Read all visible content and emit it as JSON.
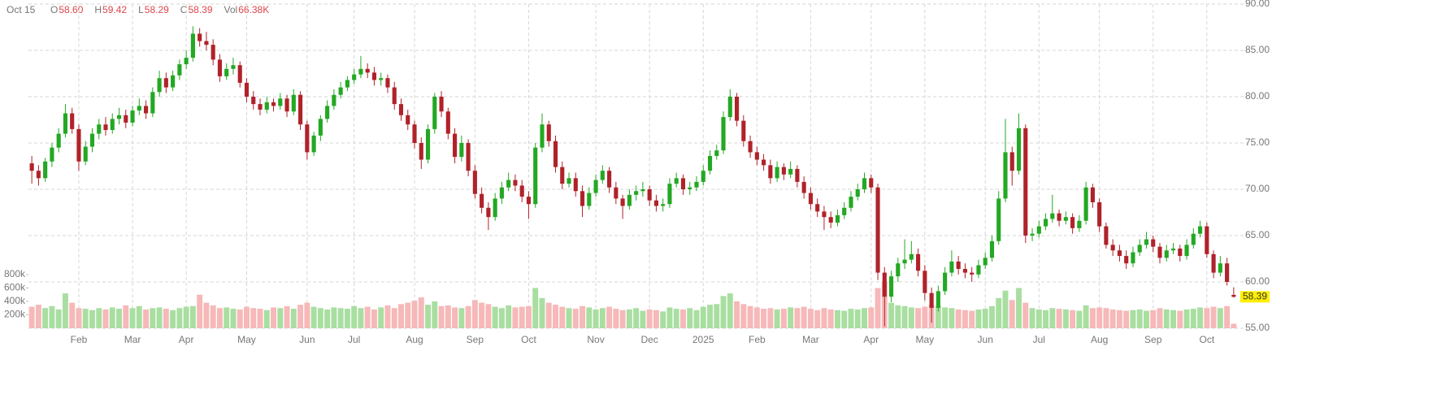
{
  "header": {
    "date": "Oct 15",
    "items": [
      {
        "label": "O",
        "value": "58.60"
      },
      {
        "label": "H",
        "value": "59.42"
      },
      {
        "label": "L",
        "value": "58.29"
      },
      {
        "label": "C",
        "value": "58.39"
      },
      {
        "label": "Vol",
        "value": "66.38K"
      }
    ]
  },
  "chart_data": {
    "type": "candlestick",
    "up_color": "#23a823",
    "down_color": "#b0222a",
    "volume_up_color": "#a9dea1",
    "volume_down_color": "#f6b8b8",
    "grid": true,
    "ylim": [
      55,
      90
    ],
    "yticks": [
      {
        "value": 55,
        "label": "55.00"
      },
      {
        "value": 60,
        "label": "60.00"
      },
      {
        "value": 65,
        "label": "65.00"
      },
      {
        "value": 70,
        "label": "70.00"
      },
      {
        "value": 75,
        "label": "75.00"
      },
      {
        "value": 80,
        "label": "80.00"
      },
      {
        "value": 85,
        "label": "85.00"
      },
      {
        "value": 90,
        "label": "90.00"
      }
    ],
    "volume_ylim": [
      0,
      800000
    ],
    "volume_ticks": [
      {
        "value": 200000,
        "label": "200k"
      },
      {
        "value": 400000,
        "label": "400k"
      },
      {
        "value": 600000,
        "label": "600k"
      },
      {
        "value": 800000,
        "label": "800k"
      }
    ],
    "categories": [
      null,
      null,
      null,
      null,
      null,
      null,
      null,
      "Feb",
      null,
      null,
      null,
      null,
      null,
      null,
      null,
      "Mar",
      null,
      null,
      null,
      null,
      null,
      null,
      null,
      "Apr",
      null,
      null,
      null,
      null,
      null,
      null,
      null,
      null,
      "May",
      null,
      null,
      null,
      null,
      null,
      null,
      null,
      null,
      "Jun",
      null,
      null,
      null,
      null,
      null,
      null,
      "Jul",
      null,
      null,
      null,
      null,
      null,
      null,
      null,
      null,
      "Aug",
      null,
      null,
      null,
      null,
      null,
      null,
      null,
      null,
      "Sep",
      null,
      null,
      null,
      null,
      null,
      null,
      null,
      "Oct",
      null,
      null,
      null,
      null,
      null,
      null,
      null,
      null,
      null,
      "Nov",
      null,
      null,
      null,
      null,
      null,
      null,
      null,
      "Dec",
      null,
      null,
      null,
      null,
      null,
      null,
      null,
      "2025",
      null,
      null,
      null,
      null,
      null,
      null,
      null,
      "Feb",
      null,
      null,
      null,
      null,
      null,
      null,
      null,
      "Mar",
      null,
      null,
      null,
      null,
      null,
      null,
      null,
      null,
      "Apr",
      null,
      null,
      null,
      null,
      null,
      null,
      null,
      "May",
      null,
      null,
      null,
      null,
      null,
      null,
      null,
      null,
      "Jun",
      null,
      null,
      null,
      null,
      null,
      null,
      null,
      "Jul",
      null,
      null,
      null,
      null,
      null,
      null,
      null,
      null,
      "Aug",
      null,
      null,
      null,
      null,
      null,
      null,
      null,
      "Sep",
      null,
      null,
      null,
      null,
      null,
      null,
      null,
      "Oct",
      null,
      null,
      null,
      null
    ],
    "candles": [
      [
        72.8,
        73.6,
        70.6,
        72.0
      ],
      [
        72.0,
        72.6,
        70.4,
        71.2
      ],
      [
        71.2,
        73.4,
        70.8,
        73.0
      ],
      [
        73.0,
        75.0,
        72.4,
        74.5
      ],
      [
        74.5,
        76.6,
        74.0,
        76.0
      ],
      [
        76.0,
        79.2,
        75.6,
        78.2
      ],
      [
        78.2,
        78.8,
        76.0,
        76.5
      ],
      [
        76.5,
        77.0,
        72.0,
        73.0
      ],
      [
        73.0,
        75.2,
        72.6,
        74.6
      ],
      [
        74.6,
        76.6,
        74.0,
        76.0
      ],
      [
        76.0,
        77.6,
        75.4,
        77.0
      ],
      [
        77.0,
        77.8,
        75.8,
        76.4
      ],
      [
        76.4,
        78.2,
        76.0,
        77.6
      ],
      [
        77.6,
        78.8,
        77.0,
        78.0
      ],
      [
        78.0,
        78.6,
        76.6,
        77.2
      ],
      [
        77.2,
        79.0,
        76.8,
        78.5
      ],
      [
        78.5,
        79.8,
        78.0,
        79.0
      ],
      [
        79.0,
        79.6,
        77.6,
        78.2
      ],
      [
        78.2,
        81.0,
        77.8,
        80.5
      ],
      [
        80.5,
        82.8,
        80.0,
        82.0
      ],
      [
        82.0,
        82.6,
        80.4,
        81.0
      ],
      [
        81.0,
        82.8,
        80.6,
        82.3
      ],
      [
        82.3,
        84.0,
        81.8,
        83.5
      ],
      [
        83.5,
        85.0,
        83.0,
        84.2
      ],
      [
        84.2,
        87.6,
        83.8,
        86.8
      ],
      [
        86.8,
        87.4,
        85.4,
        86.0
      ],
      [
        86.0,
        87.0,
        85.0,
        85.6
      ],
      [
        85.6,
        86.2,
        83.4,
        84.0
      ],
      [
        84.0,
        84.6,
        81.6,
        82.2
      ],
      [
        82.2,
        83.6,
        81.8,
        83.0
      ],
      [
        83.0,
        84.2,
        82.4,
        83.4
      ],
      [
        83.4,
        83.8,
        81.0,
        81.5
      ],
      [
        81.5,
        82.0,
        79.4,
        80.0
      ],
      [
        80.0,
        80.6,
        78.6,
        79.2
      ],
      [
        79.2,
        79.8,
        78.0,
        78.6
      ],
      [
        78.6,
        80.0,
        78.2,
        79.4
      ],
      [
        79.4,
        79.8,
        78.4,
        79.0
      ],
      [
        79.0,
        80.4,
        78.6,
        79.8
      ],
      [
        79.8,
        80.2,
        77.8,
        78.4
      ],
      [
        78.4,
        80.8,
        78.0,
        80.2
      ],
      [
        80.2,
        80.6,
        76.4,
        77.0
      ],
      [
        77.0,
        77.4,
        73.2,
        74.0
      ],
      [
        74.0,
        76.2,
        73.6,
        75.8
      ],
      [
        75.8,
        78.0,
        75.2,
        77.6
      ],
      [
        77.6,
        79.6,
        77.2,
        79.0
      ],
      [
        79.0,
        80.8,
        78.6,
        80.2
      ],
      [
        80.2,
        81.6,
        79.8,
        81.0
      ],
      [
        81.0,
        82.2,
        80.6,
        81.8
      ],
      [
        81.8,
        83.0,
        81.4,
        82.4
      ],
      [
        82.4,
        84.4,
        82.0,
        83.0
      ],
      [
        83.0,
        83.6,
        82.0,
        82.6
      ],
      [
        82.6,
        83.2,
        81.2,
        81.8
      ],
      [
        81.8,
        82.6,
        81.2,
        82.0
      ],
      [
        82.0,
        82.4,
        80.4,
        81.0
      ],
      [
        81.0,
        81.6,
        78.6,
        79.2
      ],
      [
        79.2,
        79.8,
        77.4,
        78.0
      ],
      [
        78.0,
        78.6,
        76.4,
        77.0
      ],
      [
        77.0,
        77.4,
        74.4,
        75.0
      ],
      [
        75.0,
        75.6,
        72.2,
        73.2
      ],
      [
        73.2,
        77.0,
        72.8,
        76.5
      ],
      [
        76.5,
        80.4,
        76.0,
        80.0
      ],
      [
        80.0,
        80.6,
        77.8,
        78.4
      ],
      [
        78.4,
        78.8,
        75.4,
        76.0
      ],
      [
        76.0,
        76.6,
        72.8,
        73.5
      ],
      [
        73.5,
        75.8,
        73.0,
        75.0
      ],
      [
        75.0,
        75.4,
        71.4,
        72.0
      ],
      [
        72.0,
        72.6,
        69.0,
        69.5
      ],
      [
        69.5,
        70.2,
        67.4,
        68.0
      ],
      [
        68.0,
        68.6,
        65.6,
        67.0
      ],
      [
        67.0,
        69.6,
        66.6,
        69.0
      ],
      [
        69.0,
        70.8,
        68.4,
        70.2
      ],
      [
        70.2,
        71.8,
        69.8,
        71.0
      ],
      [
        71.0,
        71.6,
        69.8,
        70.4
      ],
      [
        70.4,
        71.0,
        68.6,
        69.2
      ],
      [
        69.2,
        69.8,
        66.8,
        68.4
      ],
      [
        68.4,
        75.0,
        68.0,
        74.5
      ],
      [
        74.5,
        78.2,
        74.0,
        77.0
      ],
      [
        77.0,
        77.4,
        74.6,
        75.2
      ],
      [
        75.2,
        75.8,
        71.8,
        72.4
      ],
      [
        72.4,
        73.0,
        70.0,
        70.6
      ],
      [
        70.6,
        71.8,
        70.2,
        71.2
      ],
      [
        71.2,
        71.8,
        69.2,
        69.8
      ],
      [
        69.8,
        70.4,
        67.0,
        68.2
      ],
      [
        68.2,
        70.2,
        67.8,
        69.6
      ],
      [
        69.6,
        71.6,
        69.2,
        71.0
      ],
      [
        71.0,
        72.6,
        70.6,
        72.0
      ],
      [
        72.0,
        72.4,
        69.6,
        70.2
      ],
      [
        70.2,
        70.8,
        68.4,
        69.0
      ],
      [
        69.0,
        69.4,
        66.8,
        68.2
      ],
      [
        68.2,
        70.0,
        67.8,
        69.4
      ],
      [
        69.4,
        70.4,
        68.8,
        69.8
      ],
      [
        69.8,
        70.8,
        69.2,
        70.0
      ],
      [
        70.0,
        70.4,
        68.2,
        68.8
      ],
      [
        68.8,
        69.4,
        67.6,
        68.2
      ],
      [
        68.2,
        69.0,
        67.6,
        68.4
      ],
      [
        68.4,
        71.2,
        68.0,
        70.6
      ],
      [
        70.6,
        71.8,
        70.2,
        71.2
      ],
      [
        71.2,
        71.6,
        69.4,
        70.0
      ],
      [
        70.0,
        70.8,
        69.4,
        70.2
      ],
      [
        70.2,
        71.4,
        69.8,
        70.8
      ],
      [
        70.8,
        72.6,
        70.4,
        72.0
      ],
      [
        72.0,
        74.2,
        71.6,
        73.6
      ],
      [
        73.6,
        74.8,
        73.2,
        74.2
      ],
      [
        74.2,
        78.4,
        73.8,
        77.8
      ],
      [
        77.8,
        80.8,
        77.4,
        80.0
      ],
      [
        80.0,
        80.4,
        76.8,
        77.4
      ],
      [
        77.4,
        78.0,
        74.6,
        75.2
      ],
      [
        75.2,
        75.8,
        73.4,
        74.0
      ],
      [
        74.0,
        74.6,
        72.6,
        73.2
      ],
      [
        73.2,
        73.8,
        72.0,
        72.6
      ],
      [
        72.6,
        73.2,
        70.6,
        71.2
      ],
      [
        71.2,
        73.0,
        70.8,
        72.4
      ],
      [
        72.4,
        72.8,
        71.0,
        71.6
      ],
      [
        71.6,
        73.0,
        71.2,
        72.2
      ],
      [
        72.2,
        72.6,
        70.2,
        70.8
      ],
      [
        70.8,
        71.4,
        69.0,
        69.6
      ],
      [
        69.6,
        70.2,
        67.8,
        68.4
      ],
      [
        68.4,
        69.0,
        67.0,
        67.6
      ],
      [
        67.6,
        68.2,
        65.6,
        67.0
      ],
      [
        67.0,
        67.6,
        65.8,
        66.4
      ],
      [
        66.4,
        67.8,
        66.0,
        67.2
      ],
      [
        67.2,
        68.6,
        66.8,
        68.0
      ],
      [
        68.0,
        69.8,
        67.6,
        69.2
      ],
      [
        69.2,
        70.6,
        68.8,
        70.0
      ],
      [
        70.0,
        71.8,
        69.6,
        71.2
      ],
      [
        71.2,
        71.6,
        69.6,
        70.2
      ],
      [
        70.2,
        70.6,
        60.2,
        61.0
      ],
      [
        61.0,
        61.6,
        55.2,
        58.4
      ],
      [
        58.4,
        61.2,
        57.8,
        60.6
      ],
      [
        60.6,
        62.6,
        60.0,
        62.0
      ],
      [
        62.0,
        64.6,
        61.4,
        62.4
      ],
      [
        62.4,
        64.4,
        62.0,
        63.0
      ],
      [
        63.0,
        63.6,
        60.6,
        61.2
      ],
      [
        61.2,
        61.8,
        58.0,
        58.8
      ],
      [
        58.8,
        59.4,
        55.6,
        57.2
      ],
      [
        57.2,
        59.6,
        56.8,
        59.0
      ],
      [
        59.0,
        61.6,
        58.6,
        61.0
      ],
      [
        61.0,
        63.4,
        60.6,
        62.2
      ],
      [
        62.2,
        62.8,
        60.8,
        61.4
      ],
      [
        61.4,
        62.0,
        60.4,
        61.0
      ],
      [
        61.0,
        61.6,
        60.0,
        60.8
      ],
      [
        60.8,
        62.4,
        60.4,
        61.8
      ],
      [
        61.8,
        63.2,
        61.4,
        62.6
      ],
      [
        62.6,
        65.0,
        62.2,
        64.4
      ],
      [
        64.4,
        69.8,
        64.0,
        69.0
      ],
      [
        69.0,
        77.6,
        68.6,
        74.0
      ],
      [
        74.0,
        74.6,
        70.4,
        72.0
      ],
      [
        72.0,
        78.2,
        71.6,
        76.6
      ],
      [
        76.6,
        77.0,
        64.2,
        65.0
      ],
      [
        65.0,
        65.8,
        64.4,
        65.2
      ],
      [
        65.2,
        66.6,
        64.8,
        66.0
      ],
      [
        66.0,
        67.4,
        65.6,
        66.8
      ],
      [
        66.8,
        69.4,
        66.4,
        67.4
      ],
      [
        67.4,
        67.8,
        66.0,
        66.6
      ],
      [
        66.6,
        67.6,
        66.2,
        67.0
      ],
      [
        67.0,
        67.4,
        65.2,
        65.8
      ],
      [
        65.8,
        67.2,
        65.4,
        66.6
      ],
      [
        66.6,
        70.8,
        66.2,
        70.2
      ],
      [
        70.2,
        70.6,
        68.0,
        68.6
      ],
      [
        68.6,
        69.0,
        65.4,
        66.0
      ],
      [
        66.0,
        66.4,
        63.6,
        64.0
      ],
      [
        64.0,
        64.6,
        62.8,
        63.4
      ],
      [
        63.4,
        64.0,
        62.2,
        62.8
      ],
      [
        62.8,
        63.4,
        61.4,
        62.0
      ],
      [
        62.0,
        63.8,
        61.6,
        63.2
      ],
      [
        63.2,
        64.6,
        62.8,
        64.0
      ],
      [
        64.0,
        65.4,
        63.6,
        64.6
      ],
      [
        64.6,
        65.0,
        63.2,
        63.8
      ],
      [
        63.8,
        64.2,
        62.0,
        62.6
      ],
      [
        62.6,
        64.0,
        62.2,
        63.4
      ],
      [
        63.4,
        64.2,
        63.0,
        63.6
      ],
      [
        63.6,
        64.0,
        62.2,
        62.8
      ],
      [
        62.8,
        64.6,
        62.4,
        64.0
      ],
      [
        64.0,
        65.8,
        63.6,
        65.2
      ],
      [
        65.2,
        66.6,
        64.8,
        66.0
      ],
      [
        66.0,
        66.4,
        62.6,
        63.0
      ],
      [
        63.0,
        63.4,
        60.4,
        61.0
      ],
      [
        61.0,
        62.8,
        60.6,
        62.0
      ],
      [
        62.0,
        62.6,
        59.6,
        60.0
      ],
      [
        58.6,
        59.42,
        58.29,
        58.39
      ]
    ],
    "volume": [
      320000,
      350000,
      300000,
      330000,
      280000,
      520000,
      380000,
      300000,
      290000,
      270000,
      300000,
      280000,
      310000,
      290000,
      340000,
      300000,
      330000,
      280000,
      300000,
      310000,
      290000,
      270000,
      300000,
      320000,
      330000,
      500000,
      380000,
      340000,
      300000,
      310000,
      290000,
      280000,
      320000,
      300000,
      290000,
      270000,
      310000,
      300000,
      330000,
      290000,
      350000,
      380000,
      320000,
      300000,
      280000,
      310000,
      300000,
      290000,
      330000,
      300000,
      320000,
      280000,
      310000,
      340000,
      300000,
      360000,
      380000,
      410000,
      460000,
      350000,
      400000,
      330000,
      340000,
      310000,
      300000,
      330000,
      420000,
      380000,
      360000,
      320000,
      300000,
      340000,
      310000,
      320000,
      330000,
      600000,
      450000,
      380000,
      350000,
      320000,
      300000,
      290000,
      330000,
      310000,
      280000,
      300000,
      320000,
      290000,
      270000,
      280000,
      300000,
      260000,
      280000,
      270000,
      250000,
      310000,
      290000,
      280000,
      300000,
      270000,
      320000,
      350000,
      360000,
      480000,
      520000,
      400000,
      360000,
      330000,
      310000,
      290000,
      300000,
      280000,
      290000,
      310000,
      300000,
      320000,
      290000,
      270000,
      300000,
      280000,
      270000,
      260000,
      290000,
      280000,
      300000,
      310000,
      600000,
      700000,
      380000,
      340000,
      330000,
      310000,
      300000,
      320000,
      350000,
      330000,
      310000,
      300000,
      280000,
      270000,
      260000,
      280000,
      290000,
      330000,
      450000,
      560000,
      420000,
      600000,
      380000,
      300000,
      280000,
      270000,
      300000,
      290000,
      280000,
      270000,
      260000,
      340000,
      300000,
      310000,
      300000,
      280000,
      270000,
      260000,
      270000,
      280000,
      260000,
      270000,
      300000,
      280000,
      270000,
      260000,
      280000,
      290000,
      310000,
      300000,
      320000,
      300000,
      330000,
      66380
    ]
  }
}
